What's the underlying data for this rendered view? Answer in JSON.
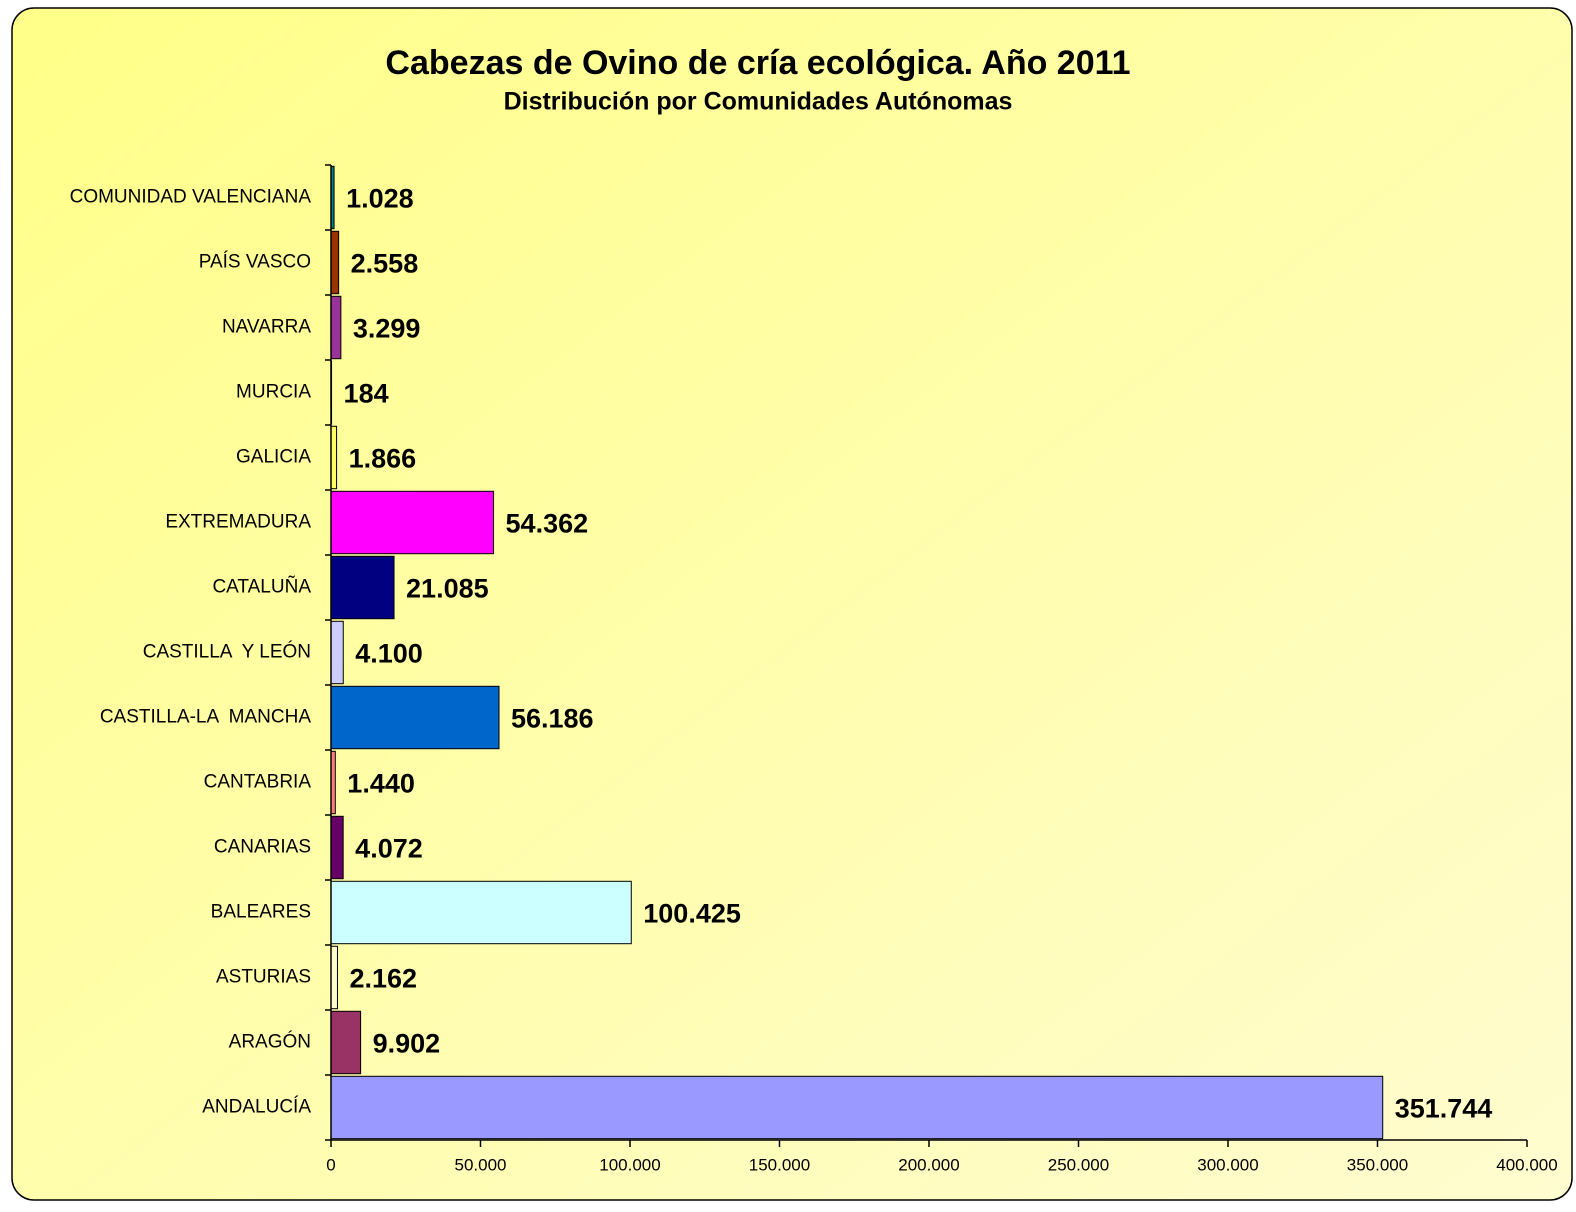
{
  "chart_data": {
    "type": "hbar",
    "title": "Cabezas de Ovino de cría ecológica. Año 2011",
    "subtitle": "Distribución por Comunidades Autónomas",
    "categories": [
      "COMUNIDAD VALENCIANA",
      "PAÍS VASCO",
      "NAVARRA",
      "MURCIA",
      "GALICIA",
      "EXTREMADURA",
      "CATALUÑA",
      "CASTILLA  Y LEÓN",
      "CASTILLA-LA  MANCHA",
      "CANTABRIA",
      "CANARIAS",
      "BALEARES",
      "ASTURIAS",
      "ARAGÓN",
      "ANDALUCÍA"
    ],
    "values": [
      1028,
      2558,
      3299,
      184,
      1866,
      54362,
      21085,
      4100,
      56186,
      1440,
      4072,
      100425,
      2162,
      9902,
      351744
    ],
    "value_labels": [
      "1.028",
      "2.558",
      "3.299",
      "184",
      "1.866",
      "54.362",
      "21.085",
      "4.100",
      "56.186",
      "1.440",
      "4.072",
      "100.425",
      "2.162",
      "9.902",
      "351.744"
    ],
    "colors": [
      "#008080",
      "#993300",
      "#993399",
      "#333300",
      "#ffff66",
      "#ff00ff",
      "#000080",
      "#ccccff",
      "#0066cc",
      "#ff8080",
      "#660066",
      "#ccffff",
      "#ffffcc",
      "#993366",
      "#9999ff"
    ],
    "xlim": [
      0,
      400000
    ],
    "xticks": [
      0,
      {
        "value": 50000,
        "label": "50.000"
      },
      {
        "value": 100000,
        "label": "100.000"
      },
      {
        "value": 150000,
        "label": "150.000"
      },
      {
        "value": 200000,
        "label": "200.000"
      },
      {
        "value": 250000,
        "label": "250.000"
      },
      {
        "value": 300000,
        "label": "300.000"
      },
      {
        "value": 350000,
        "label": "350.000"
      },
      {
        "value": 400000,
        "label": "400.000"
      }
    ]
  }
}
